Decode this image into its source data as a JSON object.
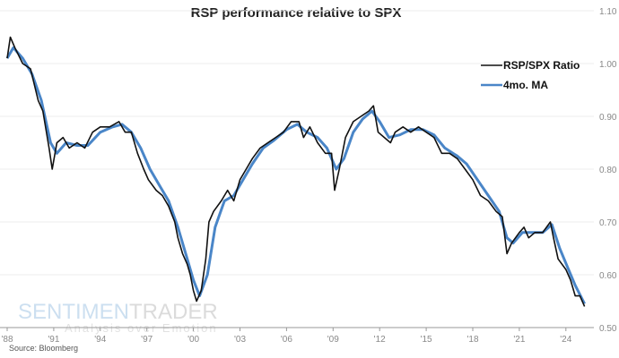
{
  "chart_data": {
    "type": "line",
    "title": "RSP performance relative to SPX",
    "xlabel": "",
    "ylabel": "",
    "xlim": [
      1988,
      2026.8
    ],
    "ylim": [
      0.5,
      1.1
    ],
    "yticks": [
      "0.50",
      "0.60",
      "0.70",
      "0.80",
      "0.90",
      "1.00",
      "1.10"
    ],
    "xticks": [
      {
        "v": 1988,
        "label": "'88"
      },
      {
        "v": 1991,
        "label": "'91"
      },
      {
        "v": 1994,
        "label": "'94"
      },
      {
        "v": 1997,
        "label": "'97"
      },
      {
        "v": 2000,
        "label": "'00"
      },
      {
        "v": 2003,
        "label": "'03"
      },
      {
        "v": 2006,
        "label": "'06"
      },
      {
        "v": 2009,
        "label": "'09"
      },
      {
        "v": 2012,
        "label": "'12"
      },
      {
        "v": 2015,
        "label": "'15"
      },
      {
        "v": 2018,
        "label": "'18"
      },
      {
        "v": 2021,
        "label": "'21"
      },
      {
        "v": 2024,
        "label": "'24"
      }
    ],
    "legend_position": "top-right",
    "series": [
      {
        "name": "RSP/SPX Ratio",
        "color": "#111111",
        "x": [
          1988.0,
          1988.2,
          1988.5,
          1989,
          1989.5,
          1990,
          1990.3,
          1990.7,
          1990.9,
          1991.2,
          1991.6,
          1992,
          1992.5,
          1993,
          1993.5,
          1994,
          1994.6,
          1995.2,
          1995.6,
          1996,
          1996.4,
          1996.8,
          1997.1,
          1997.6,
          1998,
          1998.4,
          1998.8,
          1999,
          1999.3,
          1999.6,
          1999.8,
          2000.0,
          2000.2,
          2000.5,
          2000.8,
          2001,
          2001.3,
          2001.8,
          2002.2,
          2002.6,
          2003,
          2003.4,
          2003.8,
          2004.3,
          2004.8,
          2005.3,
          2005.8,
          2006.3,
          2006.8,
          2007.1,
          2007.5,
          2008,
          2008.5,
          2008.9,
          2009.1,
          2009.4,
          2009.8,
          2010.3,
          2010.8,
          2011.3,
          2011.6,
          2011.9,
          2012.3,
          2012.7,
          2013,
          2013.5,
          2014,
          2014.5,
          2015,
          2015.5,
          2016,
          2016.5,
          2017,
          2017.5,
          2018,
          2018.5,
          2019,
          2019.5,
          2019.9,
          2020.2,
          2020.5,
          2021,
          2021.3,
          2021.6,
          2022,
          2022.5,
          2023.0,
          2023.2,
          2023.5,
          2024,
          2024.3,
          2024.6,
          2024.9,
          2025.2
        ],
        "values": [
          1.01,
          1.05,
          1.03,
          1.0,
          0.99,
          0.93,
          0.91,
          0.84,
          0.8,
          0.85,
          0.86,
          0.84,
          0.85,
          0.84,
          0.87,
          0.88,
          0.88,
          0.89,
          0.87,
          0.87,
          0.83,
          0.8,
          0.78,
          0.76,
          0.75,
          0.73,
          0.7,
          0.67,
          0.64,
          0.62,
          0.6,
          0.57,
          0.55,
          0.57,
          0.63,
          0.7,
          0.72,
          0.74,
          0.76,
          0.74,
          0.78,
          0.8,
          0.82,
          0.84,
          0.85,
          0.86,
          0.87,
          0.89,
          0.89,
          0.86,
          0.88,
          0.85,
          0.83,
          0.83,
          0.76,
          0.8,
          0.86,
          0.89,
          0.9,
          0.91,
          0.92,
          0.87,
          0.86,
          0.85,
          0.87,
          0.88,
          0.87,
          0.88,
          0.87,
          0.86,
          0.83,
          0.83,
          0.82,
          0.8,
          0.78,
          0.75,
          0.74,
          0.72,
          0.71,
          0.64,
          0.66,
          0.68,
          0.69,
          0.67,
          0.68,
          0.68,
          0.7,
          0.67,
          0.63,
          0.61,
          0.59,
          0.56,
          0.56,
          0.54
        ]
      },
      {
        "name": "4mo. MA",
        "color": "#4a86c8",
        "x": [
          1988.0,
          1988.4,
          1989,
          1989.6,
          1990.2,
          1990.8,
          1991.2,
          1991.8,
          1992.5,
          1993.2,
          1994,
          1994.8,
          1995.4,
          1996,
          1996.6,
          1997.2,
          1997.8,
          1998.4,
          1999,
          1999.5,
          2000,
          2000.4,
          2000.9,
          2001.4,
          2002,
          2002.6,
          2003.2,
          2003.8,
          2004.5,
          2005.2,
          2006,
          2006.7,
          2007.3,
          2008,
          2008.6,
          2009.2,
          2009.7,
          2010.3,
          2010.9,
          2011.5,
          2012,
          2012.6,
          2013.3,
          2014,
          2014.8,
          2015.5,
          2016.2,
          2017,
          2017.6,
          2018.3,
          2019,
          2019.7,
          2020.2,
          2020.6,
          2021.2,
          2021.8,
          2022.5,
          2023.1,
          2023.6,
          2024.1,
          2024.6,
          2025.2
        ],
        "values": [
          1.01,
          1.03,
          1.01,
          0.98,
          0.93,
          0.85,
          0.83,
          0.85,
          0.845,
          0.845,
          0.87,
          0.88,
          0.885,
          0.87,
          0.84,
          0.8,
          0.77,
          0.74,
          0.69,
          0.64,
          0.59,
          0.56,
          0.6,
          0.69,
          0.74,
          0.75,
          0.78,
          0.81,
          0.84,
          0.855,
          0.875,
          0.885,
          0.87,
          0.86,
          0.84,
          0.8,
          0.82,
          0.87,
          0.895,
          0.91,
          0.89,
          0.86,
          0.865,
          0.875,
          0.875,
          0.865,
          0.84,
          0.825,
          0.81,
          0.78,
          0.75,
          0.72,
          0.67,
          0.66,
          0.68,
          0.68,
          0.68,
          0.695,
          0.65,
          0.615,
          0.58,
          0.545
        ]
      }
    ]
  },
  "source": "Source: Bloomberg",
  "watermark": {
    "brand_a": "SENTIMEN",
    "brand_b": "TRADER",
    "tagline": "Analysis over Emotion"
  }
}
